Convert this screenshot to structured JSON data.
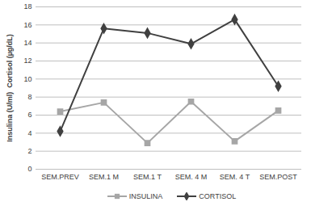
{
  "chart_data": {
    "type": "line",
    "y_label": "Insulina (U/ml)  Cortisol (µg/dL)",
    "categories": [
      "SEM.PREV",
      "SEM.1 M",
      "SEM.1 T",
      "SEM. 4 M",
      "SEM. 4 T",
      "SEM.POST"
    ],
    "series": [
      {
        "name": "INSULINA",
        "color": "#a6a6a6",
        "marker": "square",
        "line_style": "solid",
        "values": [
          6.4,
          7.4,
          2.9,
          7.5,
          3.1,
          6.5
        ]
      },
      {
        "name": "CORTISOL",
        "color": "#404040",
        "marker": "diamond",
        "line_style": "solid",
        "values": [
          4.2,
          15.6,
          15.1,
          13.9,
          16.6,
          9.2
        ]
      }
    ],
    "ylim": [
      0,
      18
    ],
    "yticks": [
      0,
      2,
      4,
      6,
      8,
      10,
      12,
      14,
      16,
      18
    ],
    "grid": true,
    "legend": "bottom"
  }
}
